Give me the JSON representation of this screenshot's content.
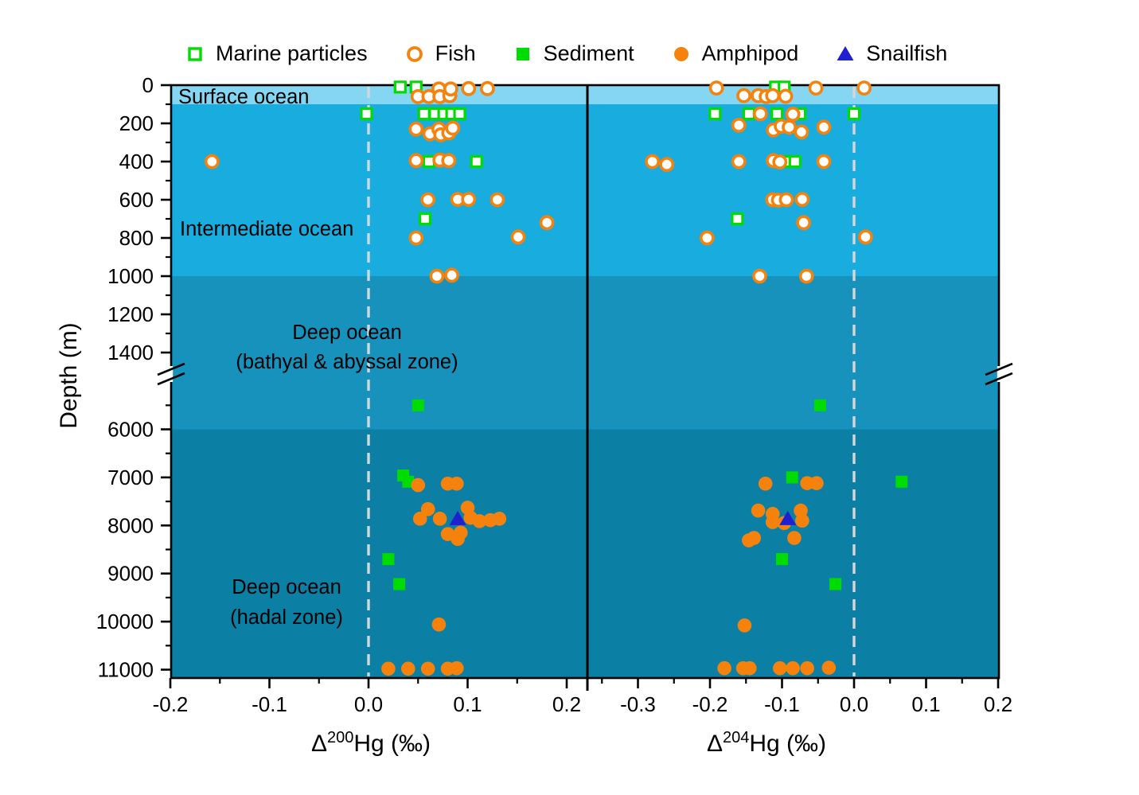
{
  "figure": {
    "background": "#FFFFFF"
  },
  "colors": {
    "marine_particles_green": "#00DC00",
    "fish_orange": "#F5820D",
    "sediment_green": "#00DC00",
    "amphipod_orange": "#F5820D",
    "snailfish_blue": "#2020D0",
    "zero_dash_line": "#D6D6D6",
    "axis_black": "#000000",
    "zone_surface": "#85D6F2",
    "zone_intermediate": "#18ACDF",
    "zone_bathyal": "#1792BC",
    "zone_hadal": "#0C80A4"
  },
  "legend": {
    "items": [
      {
        "label": "Marine particles",
        "marker": "open-square"
      },
      {
        "label": "Fish",
        "marker": "open-circle"
      },
      {
        "label": "Sediment",
        "marker": "filled-square"
      },
      {
        "label": "Amphipod",
        "marker": "filled-circle"
      },
      {
        "label": "Snailfish",
        "marker": "filled-triangle"
      }
    ]
  },
  "y_axis": {
    "title": "Depth (m)",
    "axis_break": true,
    "major_ticks": [
      {
        "d": 0,
        "label": "0"
      },
      {
        "d": 200,
        "label": "200"
      },
      {
        "d": 400,
        "label": "400"
      },
      {
        "d": 600,
        "label": "600"
      },
      {
        "d": 800,
        "label": "800"
      },
      {
        "d": 1000,
        "label": "1000"
      },
      {
        "d": 1200,
        "label": "1200"
      },
      {
        "d": 1400,
        "label": "1400"
      },
      {
        "d": 6000,
        "label": "6000"
      },
      {
        "d": 7000,
        "label": "7000"
      },
      {
        "d": 8000,
        "label": "8000"
      },
      {
        "d": 9000,
        "label": "9000"
      },
      {
        "d": 10000,
        "label": "10000"
      },
      {
        "d": 11000,
        "label": "11000"
      }
    ],
    "minor_ticks": [
      100,
      300,
      500,
      700,
      900,
      1100,
      1300,
      5500,
      6500,
      7500,
      8500,
      9500,
      10500
    ]
  },
  "zones": [
    {
      "name": "surface-ocean",
      "label_lines": [
        "Surface ocean"
      ],
      "depth_range": [
        0,
        100
      ],
      "color": "#85D6F2"
    },
    {
      "name": "intermediate-ocean",
      "label_lines": [
        "Intermediate ocean"
      ],
      "depth_range": [
        100,
        1000
      ],
      "color": "#18ACDF"
    },
    {
      "name": "deep-ocean-bathyal",
      "label_lines": [
        "Deep ocean",
        "(bathyal & abyssal zone)"
      ],
      "depth_range": [
        1000,
        6000
      ],
      "color": "#1792BC"
    },
    {
      "name": "deep-ocean-hadal",
      "label_lines": [
        "Deep ocean",
        "(hadal zone)"
      ],
      "depth_range": [
        6000,
        11200
      ],
      "color": "#0C80A4"
    }
  ],
  "chart_data": [
    {
      "type": "scatter",
      "panel": "left",
      "xlabel": {
        "prefix": "Δ",
        "sup": "200",
        "suffix": "Hg (‰)"
      },
      "ylabel": "Depth (m)",
      "x_range": [
        -0.2,
        0.22
      ],
      "zero_dashline": 0.0,
      "x_major_ticks": [
        {
          "v": -0.2,
          "label": "-0.2"
        },
        {
          "v": -0.1,
          "label": "-0.1"
        },
        {
          "v": 0.0,
          "label": "0.0"
        },
        {
          "v": 0.1,
          "label": "0.1"
        },
        {
          "v": 0.2,
          "label": "0.2"
        }
      ],
      "x_minor_ticks": [
        -0.15,
        -0.05,
        0.05,
        0.15
      ],
      "series": [
        {
          "name": "Marine particles",
          "marker": "open-square",
          "color": "#00DC00",
          "points": [
            [
              0.032,
              10
            ],
            [
              0.048,
              10
            ],
            [
              -0.002,
              150
            ],
            [
              0.056,
              150
            ],
            [
              0.067,
              150
            ],
            [
              0.076,
              150
            ],
            [
              0.084,
              150
            ],
            [
              0.092,
              150
            ],
            [
              0.061,
              400
            ],
            [
              0.109,
              400
            ],
            [
              0.057,
              700
            ]
          ]
        },
        {
          "name": "Fish",
          "marker": "open-circle",
          "color": "#F5820D",
          "points": [
            [
              0.05,
              60
            ],
            [
              0.061,
              60
            ],
            [
              0.071,
              20
            ],
            [
              0.072,
              60
            ],
            [
              0.082,
              55
            ],
            [
              0.083,
              20
            ],
            [
              0.101,
              18
            ],
            [
              0.12,
              18
            ],
            [
              0.048,
              230
            ],
            [
              0.062,
              255
            ],
            [
              0.071,
              230
            ],
            [
              0.073,
              260
            ],
            [
              0.081,
              250
            ],
            [
              0.085,
              225
            ],
            [
              -0.158,
              400
            ],
            [
              0.048,
              395
            ],
            [
              0.072,
              392
            ],
            [
              0.081,
              395
            ],
            [
              0.06,
              600
            ],
            [
              0.09,
              598
            ],
            [
              0.101,
              598
            ],
            [
              0.13,
              600
            ],
            [
              0.18,
              720
            ],
            [
              0.048,
              800
            ],
            [
              0.151,
              795
            ],
            [
              0.069,
              1000
            ],
            [
              0.084,
              995
            ]
          ]
        },
        {
          "name": "Sediment",
          "marker": "filled-square",
          "color": "#00DC00",
          "points": [
            [
              0.05,
              5500
            ],
            [
              0.035,
              6960
            ],
            [
              0.04,
              7090
            ],
            [
              0.02,
              8700
            ],
            [
              0.031,
              9220
            ]
          ]
        },
        {
          "name": "Amphipod",
          "marker": "filled-circle",
          "color": "#F5820D",
          "points": [
            [
              0.05,
              7160
            ],
            [
              0.08,
              7130
            ],
            [
              0.089,
              7130
            ],
            [
              0.06,
              7660
            ],
            [
              0.1,
              7630
            ],
            [
              0.052,
              7860
            ],
            [
              0.072,
              7860
            ],
            [
              0.103,
              7840
            ],
            [
              0.112,
              7910
            ],
            [
              0.123,
              7890
            ],
            [
              0.132,
              7860
            ],
            [
              0.08,
              8180
            ],
            [
              0.093,
              8150
            ],
            [
              0.09,
              8280
            ],
            [
              0.071,
              10060
            ],
            [
              0.02,
              10980
            ],
            [
              0.04,
              10980
            ],
            [
              0.06,
              10980
            ],
            [
              0.08,
              10980
            ],
            [
              0.089,
              10970
            ]
          ]
        },
        {
          "name": "Snailfish",
          "marker": "filled-triangle",
          "color": "#2020D0",
          "points": [
            [
              0.09,
              7860
            ]
          ]
        }
      ]
    },
    {
      "type": "scatter",
      "panel": "right",
      "xlabel": {
        "prefix": "Δ",
        "sup": "204",
        "suffix": "Hg (‰)"
      },
      "ylabel": "Depth (m)",
      "x_range": [
        -0.368,
        0.2
      ],
      "zero_dashline": 0.0,
      "x_major_ticks": [
        {
          "v": -0.3,
          "label": "-0.3"
        },
        {
          "v": -0.2,
          "label": "-0.2"
        },
        {
          "v": -0.1,
          "label": "-0.1"
        },
        {
          "v": 0.0,
          "label": "0.0"
        },
        {
          "v": 0.1,
          "label": "0.1"
        },
        {
          "v": 0.2,
          "label": "0.2"
        }
      ],
      "x_minor_ticks": [
        -0.35,
        -0.25,
        -0.15,
        -0.05,
        0.05,
        0.15
      ],
      "series": [
        {
          "name": "Marine particles",
          "marker": "open-square",
          "color": "#00DC00",
          "points": [
            [
              -0.109,
              10
            ],
            [
              -0.097,
              10
            ],
            [
              -0.193,
              150
            ],
            [
              -0.146,
              150
            ],
            [
              -0.107,
              150
            ],
            [
              -0.075,
              150
            ],
            [
              0.0,
              150
            ],
            [
              -0.096,
              400
            ],
            [
              -0.082,
              400
            ],
            [
              -0.162,
              700
            ]
          ]
        },
        {
          "name": "Fish",
          "marker": "open-circle",
          "color": "#F5820D",
          "points": [
            [
              -0.191,
              15
            ],
            [
              -0.153,
              55
            ],
            [
              -0.133,
              55
            ],
            [
              -0.122,
              60
            ],
            [
              -0.113,
              55
            ],
            [
              -0.095,
              58
            ],
            [
              -0.053,
              15
            ],
            [
              0.014,
              15
            ],
            [
              -0.13,
              150
            ],
            [
              -0.085,
              152
            ],
            [
              -0.16,
              210
            ],
            [
              -0.112,
              235
            ],
            [
              -0.101,
              215
            ],
            [
              -0.09,
              220
            ],
            [
              -0.073,
              245
            ],
            [
              -0.042,
              220
            ],
            [
              -0.28,
              400
            ],
            [
              -0.26,
              415
            ],
            [
              -0.16,
              400
            ],
            [
              -0.112,
              395
            ],
            [
              -0.103,
              402
            ],
            [
              -0.042,
              400
            ],
            [
              -0.113,
              600
            ],
            [
              -0.105,
              602
            ],
            [
              -0.094,
              600
            ],
            [
              -0.072,
              598
            ],
            [
              -0.07,
              720
            ],
            [
              -0.204,
              800
            ],
            [
              0.016,
              795
            ],
            [
              -0.131,
              1000
            ],
            [
              -0.066,
              1000
            ]
          ]
        },
        {
          "name": "Sediment",
          "marker": "filled-square",
          "color": "#00DC00",
          "points": [
            [
              -0.047,
              5500
            ],
            [
              -0.086,
              7000
            ],
            [
              0.066,
              7090
            ],
            [
              -0.1,
              8700
            ],
            [
              -0.026,
              9220
            ]
          ]
        },
        {
          "name": "Amphipod",
          "marker": "filled-circle",
          "color": "#F5820D",
          "points": [
            [
              -0.123,
              7130
            ],
            [
              -0.065,
              7120
            ],
            [
              -0.052,
              7120
            ],
            [
              -0.133,
              7690
            ],
            [
              -0.074,
              7690
            ],
            [
              -0.113,
              7760
            ],
            [
              -0.113,
              7930
            ],
            [
              -0.097,
              7950
            ],
            [
              -0.072,
              7900
            ],
            [
              -0.139,
              8260
            ],
            [
              -0.146,
              8310
            ],
            [
              -0.083,
              8260
            ],
            [
              -0.152,
              10080
            ],
            [
              -0.18,
              10970
            ],
            [
              -0.154,
              10970
            ],
            [
              -0.145,
              10970
            ],
            [
              -0.103,
              10970
            ],
            [
              -0.085,
              10970
            ],
            [
              -0.065,
              10970
            ],
            [
              -0.035,
              10960
            ]
          ]
        },
        {
          "name": "Snailfish",
          "marker": "filled-triangle",
          "color": "#2020D0",
          "points": [
            [
              -0.092,
              7860
            ]
          ]
        }
      ]
    }
  ]
}
